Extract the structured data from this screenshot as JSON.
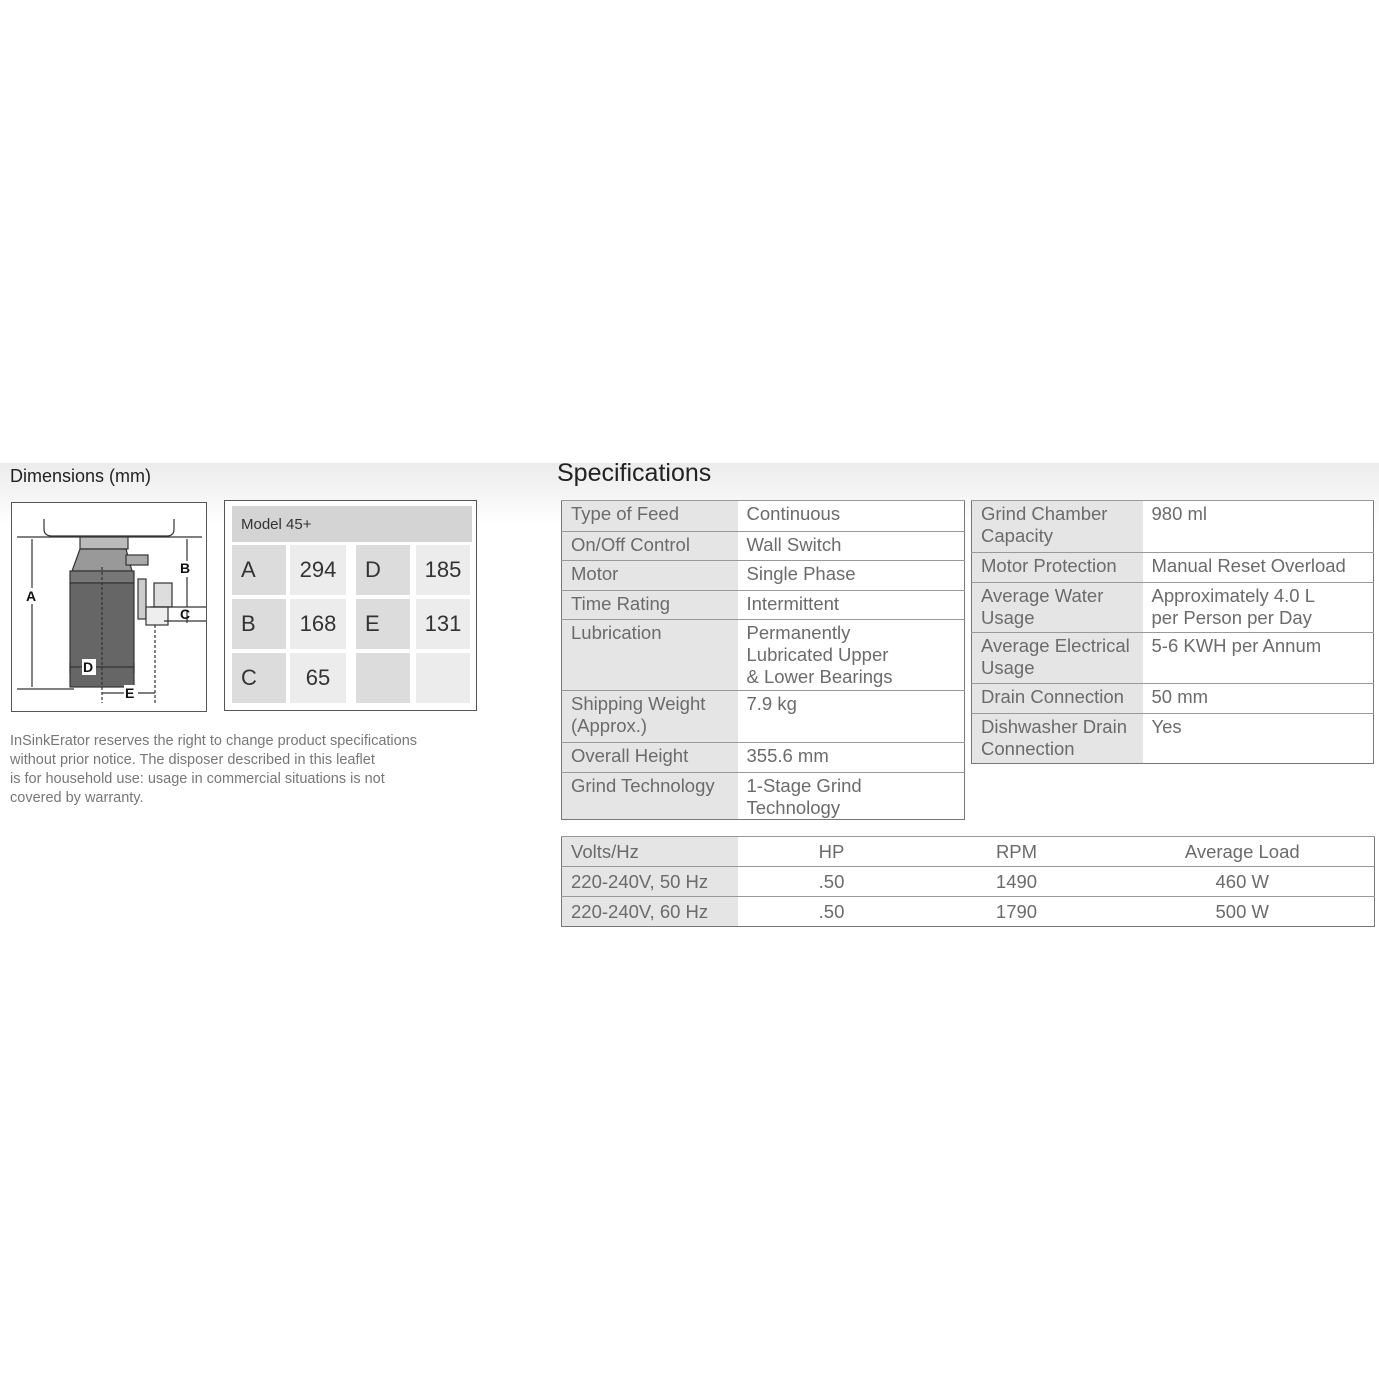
{
  "dimensions": {
    "title": "Dimensions (mm)",
    "diagram_labels": [
      "A",
      "B",
      "C",
      "D",
      "E"
    ],
    "model": "Model 45+",
    "rows": [
      [
        {
          "k": "A",
          "v": "294"
        },
        {
          "k": "D",
          "v": "185"
        }
      ],
      [
        {
          "k": "B",
          "v": "168"
        },
        {
          "k": "E",
          "v": "131"
        }
      ],
      [
        {
          "k": "C",
          "v": "65"
        },
        {
          "k": "",
          "v": ""
        }
      ]
    ],
    "disclaimer": "InSinkErator reserves the right to change product specifications\nwithout prior notice. The disposer described in this leaflet\nis for household use: usage in commercial situations is not\ncovered by warranty."
  },
  "specifications": {
    "title": "Specifications",
    "left": [
      {
        "label": [
          "Type of Feed"
        ],
        "value": [
          "Continuous"
        ]
      },
      {
        "label": [
          "On/Off Control"
        ],
        "value": [
          "Wall Switch"
        ]
      },
      {
        "label": [
          "Motor"
        ],
        "value": [
          "Single Phase"
        ]
      },
      {
        "label": [
          "Time Rating"
        ],
        "value": [
          "Intermittent"
        ]
      },
      {
        "label": [
          "Lubrication"
        ],
        "value": [
          "Permanently",
          "Lubricated Upper",
          "& Lower Bearings"
        ]
      },
      {
        "label": [
          "Shipping Weight",
          "(Approx.)"
        ],
        "value": [
          "7.9 kg"
        ]
      },
      {
        "label": [
          "Overall Height"
        ],
        "value": [
          "355.6 mm"
        ]
      },
      {
        "label": [
          "Grind Technology"
        ],
        "value": [
          "1-Stage Grind Technology"
        ]
      }
    ],
    "right": [
      {
        "label": [
          "Grind Chamber",
          "Capacity"
        ],
        "value": [
          "980 ml"
        ]
      },
      {
        "label": [
          "Motor Protection"
        ],
        "value": [
          "Manual Reset Overload"
        ]
      },
      {
        "label": [
          "Average Water",
          "Usage"
        ],
        "value": [
          "Approximately 4.0 L",
          "per Person per Day"
        ]
      },
      {
        "label": [
          "Average Electrical",
          "Usage"
        ],
        "value": [
          "5-6 KWH per Annum"
        ]
      },
      {
        "label": [
          "Drain Connection"
        ],
        "value": [
          "50 mm"
        ]
      },
      {
        "label": [
          "Dishwasher Drain",
          "Connection"
        ],
        "value": [
          "Yes"
        ]
      }
    ],
    "electrical": {
      "headers": [
        "Volts/Hz",
        "HP",
        "RPM",
        "Average Load"
      ],
      "rows": [
        [
          "220-240V, 50 Hz",
          ".50",
          "1490",
          "460 W"
        ],
        [
          "220-240V, 60 Hz",
          ".50",
          "1790",
          "500 W"
        ]
      ]
    }
  }
}
